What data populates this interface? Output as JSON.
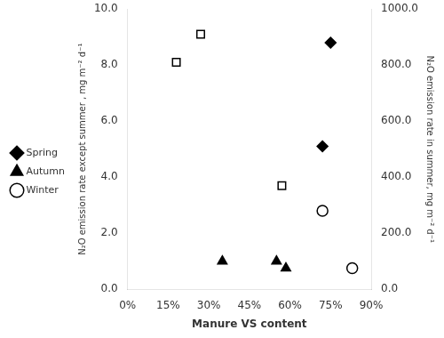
{
  "chart_data": {
    "type": "scatter",
    "xlabel": "Manure VS content",
    "ylabel": "N₂O emission rate except summer , mg m⁻² d⁻¹",
    "y2label": "N₂O emission rate in summer, mg m⁻² d⁻¹",
    "xlim": [
      0.0,
      0.9
    ],
    "xticks": [
      {
        "value": 0.0,
        "label": "0%"
      },
      {
        "value": 0.15,
        "label": "15%"
      },
      {
        "value": 0.3,
        "label": "30%"
      },
      {
        "value": 0.45,
        "label": "45%"
      },
      {
        "value": 0.6,
        "label": "60%"
      },
      {
        "value": 0.75,
        "label": "75%"
      },
      {
        "value": 0.9,
        "label": "90%"
      }
    ],
    "ylim": [
      0.0,
      10.0
    ],
    "yticks": [
      {
        "value": 0.0,
        "label": "0.0"
      },
      {
        "value": 2.0,
        "label": "2.0"
      },
      {
        "value": 4.0,
        "label": "4.0"
      },
      {
        "value": 6.0,
        "label": "6.0"
      },
      {
        "value": 8.0,
        "label": "8.0"
      },
      {
        "value": 10.0,
        "label": "10.0"
      }
    ],
    "y2lim": [
      0.0,
      1000.0
    ],
    "y2ticks": [
      {
        "value": 0.0,
        "label": "0.0"
      },
      {
        "value": 200.0,
        "label": "200.0"
      },
      {
        "value": 400.0,
        "label": "400.0"
      },
      {
        "value": 600.0,
        "label": "600.0"
      },
      {
        "value": 800.0,
        "label": "800.0"
      },
      {
        "value": 1000.0,
        "label": "1000.0"
      }
    ],
    "grid": false,
    "legend": "left",
    "series": [
      {
        "axis": "y2",
        "color": "black",
        "marker": "square_open",
        "x": [
          0.18,
          0.27,
          0.57
        ],
        "values": [
          810,
          910,
          370
        ]
      },
      {
        "name": "Spring",
        "color": "black",
        "marker": "diamond",
        "x": [
          0.72,
          0.75
        ],
        "values": [
          5.1,
          8.8
        ]
      },
      {
        "name": "Autumn",
        "color": "black",
        "marker": "triangle",
        "x": [
          0.35,
          0.55,
          0.585
        ],
        "values": [
          1.0,
          1.0,
          0.75
        ]
      },
      {
        "name": "Winter",
        "color": "black",
        "marker": "circle_open",
        "x": [
          0.72,
          0.83
        ],
        "values": [
          2.8,
          0.75
        ]
      }
    ]
  }
}
